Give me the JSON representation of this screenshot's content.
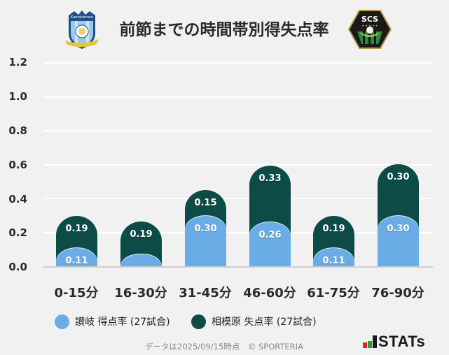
{
  "header": {
    "title": "前節までの時間帯別得失点率",
    "home_logo": "kamatamare-sanuki-crest",
    "away_logo": "sc-sagamihara-crest",
    "away_logo_text": "SCS"
  },
  "legend": [
    {
      "label": "讃岐 得点率 (27試合)",
      "color": "#6aade6"
    },
    {
      "label": "相模原 失点率 (27試合)",
      "color": "#0d4b47"
    }
  ],
  "footer": {
    "note": "データは2025/09/15時点　© SPORTERIA",
    "brand": "STATs",
    "brand_bar_colors": [
      "#d62a2a",
      "#2e9a3c",
      "#1a1a1a"
    ]
  },
  "y_ticks": [
    "1.2",
    "1.0",
    "0.8",
    "0.6",
    "0.4",
    "0.2",
    "0.0"
  ],
  "chart_data": {
    "type": "bar",
    "stacked": true,
    "title": "前節までの時間帯別得失点率",
    "categories": [
      "0-15分",
      "16-30分",
      "31-45分",
      "46-60分",
      "61-75分",
      "76-90分"
    ],
    "series": [
      {
        "name": "讃岐 得点率 (27試合)",
        "color": "#6aade6",
        "values": [
          0.11,
          0.0,
          0.3,
          0.26,
          0.11,
          0.3
        ],
        "labels": [
          "0.11",
          "",
          "0.30",
          "0.26",
          "0.11",
          "0.30"
        ]
      },
      {
        "name": "相模原 失点率 (27試合)",
        "color": "#0d4b47",
        "values": [
          0.19,
          0.19,
          0.15,
          0.33,
          0.19,
          0.3
        ],
        "labels": [
          "0.19",
          "0.19",
          "0.15",
          "0.33",
          "0.19",
          "0.30"
        ]
      }
    ],
    "xlabel": "",
    "ylabel": "",
    "ylim": [
      0,
      1.2
    ],
    "y_ticks": [
      0.0,
      0.2,
      0.4,
      0.6,
      0.8,
      1.0,
      1.2
    ],
    "grid": true,
    "legend_position": "bottom"
  }
}
